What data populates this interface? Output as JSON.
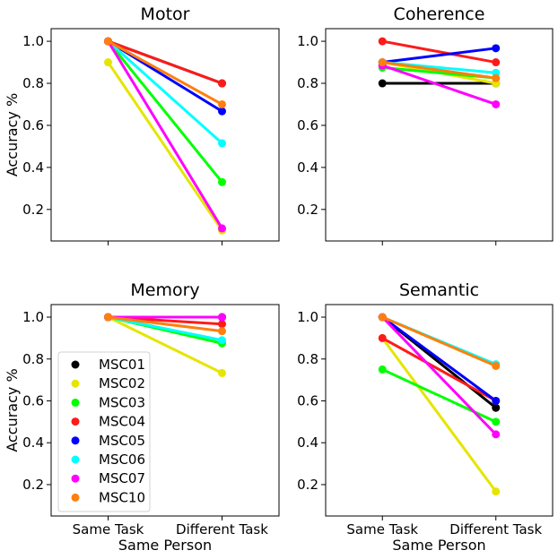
{
  "chart_data": [
    {
      "type": "line",
      "title": "Motor",
      "categories": [
        "Same Task",
        "Different Task"
      ],
      "ylabel": "Accuracy %",
      "xlabel": "",
      "ylim": [
        0.05,
        1.06
      ],
      "yticks": [
        "0.2",
        "0.4",
        "0.6",
        "0.8",
        "1.0"
      ],
      "series": [
        {
          "name": "MSC01",
          "color": "#000000",
          "values": [
            1.0,
            0.8
          ]
        },
        {
          "name": "MSC02",
          "color": "#e5e500",
          "values": [
            0.9,
            0.1
          ]
        },
        {
          "name": "MSC03",
          "color": "#00ff00",
          "values": [
            1.0,
            0.33
          ]
        },
        {
          "name": "MSC04",
          "color": "#ff1a1a",
          "values": [
            1.0,
            0.8
          ]
        },
        {
          "name": "MSC05",
          "color": "#0000ff",
          "values": [
            1.0,
            0.667
          ]
        },
        {
          "name": "MSC06",
          "color": "#00ffff",
          "values": [
            1.0,
            0.515
          ]
        },
        {
          "name": "MSC07",
          "color": "#ff00ff",
          "values": [
            1.0,
            0.11
          ]
        },
        {
          "name": "MSC10",
          "color": "#ff7f0e",
          "values": [
            1.0,
            0.7
          ]
        }
      ]
    },
    {
      "type": "line",
      "title": "Coherence",
      "categories": [
        "Same Task",
        "Different Task"
      ],
      "ylabel": "",
      "xlabel": "",
      "ylim": [
        0.05,
        1.06
      ],
      "yticks": [
        "0.2",
        "0.4",
        "0.6",
        "0.8",
        "1.0"
      ],
      "series": [
        {
          "name": "MSC01",
          "color": "#000000",
          "values": [
            0.8,
            0.8
          ]
        },
        {
          "name": "MSC02",
          "color": "#e5e500",
          "values": [
            0.9,
            0.8
          ]
        },
        {
          "name": "MSC03",
          "color": "#00ff00",
          "values": [
            0.875,
            0.825
          ]
        },
        {
          "name": "MSC04",
          "color": "#ff1a1a",
          "values": [
            1.0,
            0.9
          ]
        },
        {
          "name": "MSC05",
          "color": "#0000ff",
          "values": [
            0.9,
            0.967
          ]
        },
        {
          "name": "MSC06",
          "color": "#00ffff",
          "values": [
            0.9,
            0.85
          ]
        },
        {
          "name": "MSC07",
          "color": "#ff00ff",
          "values": [
            0.885,
            0.7
          ]
        },
        {
          "name": "MSC10",
          "color": "#ff7f0e",
          "values": [
            0.9,
            0.825
          ]
        }
      ]
    },
    {
      "type": "line",
      "title": "Memory",
      "categories": [
        "Same Task",
        "Different Task"
      ],
      "ylabel": "Accuracy %",
      "xlabel": "Same Person",
      "ylim": [
        0.05,
        1.06
      ],
      "yticks": [
        "0.2",
        "0.4",
        "0.6",
        "0.8",
        "1.0"
      ],
      "legend": "lower-left",
      "series": [
        {
          "name": "MSC01",
          "color": "#000000",
          "values": [
            1.0,
            1.0
          ]
        },
        {
          "name": "MSC02",
          "color": "#e5e500",
          "values": [
            1.0,
            0.733
          ]
        },
        {
          "name": "MSC03",
          "color": "#00ff00",
          "values": [
            1.0,
            0.875
          ]
        },
        {
          "name": "MSC04",
          "color": "#ff1a1a",
          "values": [
            1.0,
            0.967
          ]
        },
        {
          "name": "MSC05",
          "color": "#0000ff",
          "values": [
            1.0,
            1.0
          ]
        },
        {
          "name": "MSC06",
          "color": "#00ffff",
          "values": [
            1.0,
            0.89
          ]
        },
        {
          "name": "MSC07",
          "color": "#ff00ff",
          "values": [
            1.0,
            1.0
          ]
        },
        {
          "name": "MSC10",
          "color": "#ff7f0e",
          "values": [
            1.0,
            0.933
          ]
        }
      ]
    },
    {
      "type": "line",
      "title": "Semantic",
      "categories": [
        "Same Task",
        "Different Task"
      ],
      "ylabel": "",
      "xlabel": "Same Person",
      "ylim": [
        0.05,
        1.06
      ],
      "yticks": [
        "0.2",
        "0.4",
        "0.6",
        "0.8",
        "1.0"
      ],
      "series": [
        {
          "name": "MSC01",
          "color": "#000000",
          "values": [
            1.0,
            0.567
          ]
        },
        {
          "name": "MSC02",
          "color": "#e5e500",
          "values": [
            0.9,
            0.167
          ]
        },
        {
          "name": "MSC03",
          "color": "#00ff00",
          "values": [
            0.75,
            0.5
          ]
        },
        {
          "name": "MSC04",
          "color": "#ff1a1a",
          "values": [
            0.9,
            0.6
          ]
        },
        {
          "name": "MSC05",
          "color": "#0000ff",
          "values": [
            1.0,
            0.6
          ]
        },
        {
          "name": "MSC06",
          "color": "#00ffff",
          "values": [
            1.0,
            0.775
          ]
        },
        {
          "name": "MSC07",
          "color": "#ff00ff",
          "values": [
            1.0,
            0.44
          ]
        },
        {
          "name": "MSC10",
          "color": "#ff7f0e",
          "values": [
            1.0,
            0.767
          ]
        }
      ]
    }
  ]
}
